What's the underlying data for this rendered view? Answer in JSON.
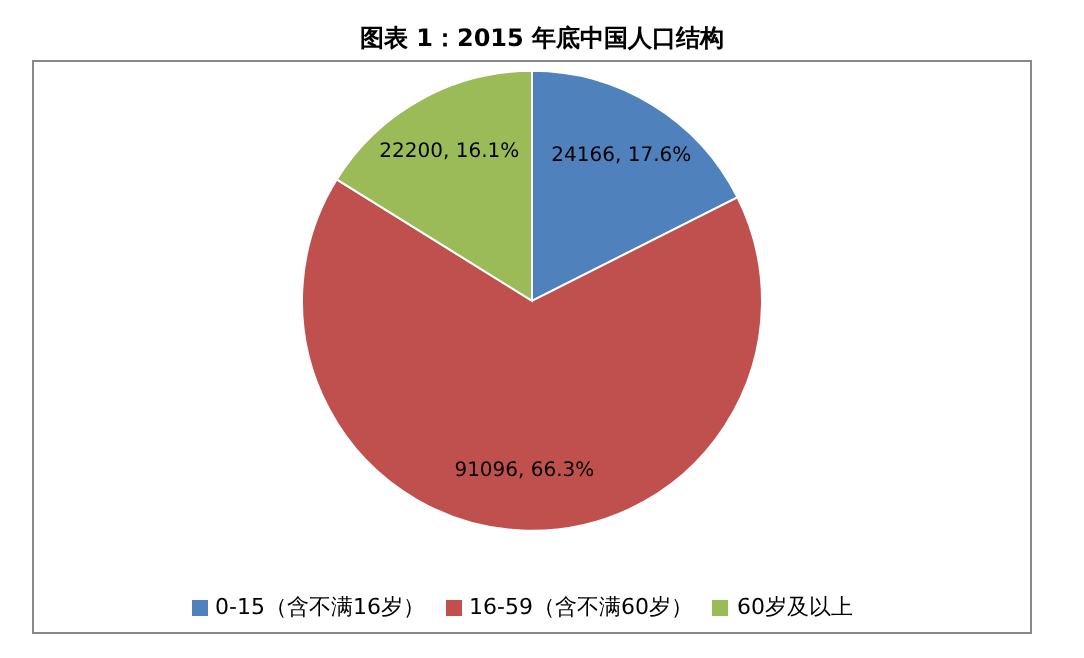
{
  "chart_data": {
    "type": "pie",
    "title": "图表 1：2015 年底中国人口结构",
    "categories": [
      "0-15（含不满16岁）",
      "16-59（含不满60岁）",
      "60岁及以上"
    ],
    "values": [
      24166,
      91096,
      22200
    ],
    "colors": [
      "#4f81bd",
      "#c0504d",
      "#9bbb59"
    ],
    "value_labels": [
      "24166, 17.6%",
      "91096, 66.3%",
      "22200, 16.1%"
    ],
    "legend": "bottom"
  }
}
